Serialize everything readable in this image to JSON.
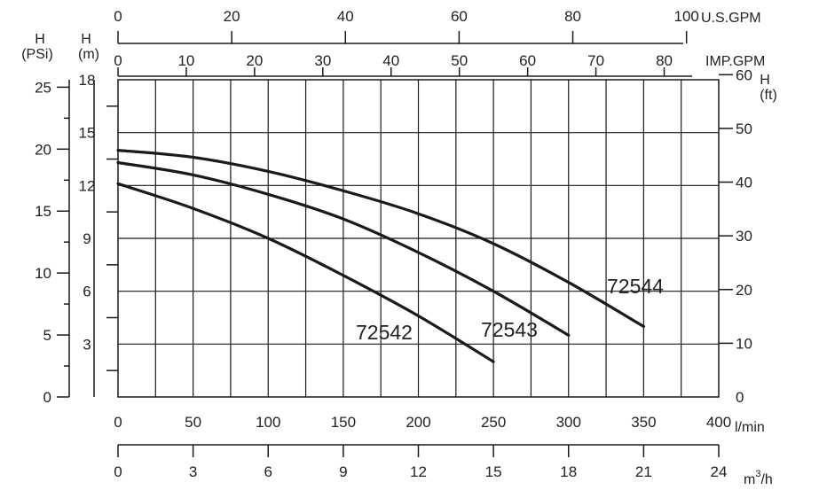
{
  "colors": {
    "line": "#1a1a1a",
    "text": "#222222",
    "background": "#ffffff"
  },
  "chart_data": {
    "type": "line",
    "grid": true,
    "x_axes": {
      "lmin": {
        "label": "l/min",
        "range": [
          0,
          400
        ],
        "ticks": [
          0,
          50,
          100,
          150,
          200,
          250,
          300,
          350,
          400
        ]
      },
      "m3h": {
        "label_base": "m",
        "label_sup": "3",
        "label_tail": "/h",
        "range": [
          0,
          24
        ],
        "ticks": [
          0,
          3,
          6,
          9,
          12,
          15,
          18,
          21,
          24
        ]
      },
      "usgpm": {
        "label": "U.S.GPM",
        "range": [
          0,
          105.67
        ],
        "ticks": [
          0,
          20,
          40,
          60,
          80,
          100
        ]
      },
      "impgpm": {
        "label": "IMP.GPM",
        "range": [
          0,
          87.99
        ],
        "ticks": [
          0,
          10,
          20,
          30,
          40,
          50,
          60,
          70,
          80
        ]
      }
    },
    "y_axes": {
      "m": {
        "label_top": "H",
        "label_bottom": "(m)",
        "range": [
          0,
          18
        ],
        "ticks": [
          3,
          6,
          9,
          12,
          15,
          18
        ]
      },
      "psi": {
        "label_top": "H",
        "label_bottom": "(PSi)",
        "range": [
          0,
          25.6
        ],
        "ticks": [
          0,
          5,
          10,
          15,
          20,
          25
        ]
      },
      "ft": {
        "label_top": "H",
        "label_bottom": "(ft)",
        "range": [
          0,
          59.06
        ],
        "ticks": [
          0,
          10,
          20,
          30,
          40,
          50,
          60
        ]
      }
    },
    "series": [
      {
        "name": "72542",
        "x": [
          0,
          50,
          100,
          150,
          200,
          250
        ],
        "y": [
          12.1,
          10.7,
          9.0,
          6.9,
          4.6,
          2.0
        ]
      },
      {
        "name": "72543",
        "x": [
          0,
          50,
          100,
          150,
          200,
          250,
          300
        ],
        "y": [
          13.3,
          12.6,
          11.5,
          10.1,
          8.2,
          6.0,
          3.5
        ]
      },
      {
        "name": "72544",
        "x": [
          0,
          50,
          100,
          150,
          200,
          250,
          300,
          350
        ],
        "y": [
          14.0,
          13.6,
          12.8,
          11.7,
          10.4,
          8.7,
          6.5,
          4.0
        ]
      }
    ]
  }
}
